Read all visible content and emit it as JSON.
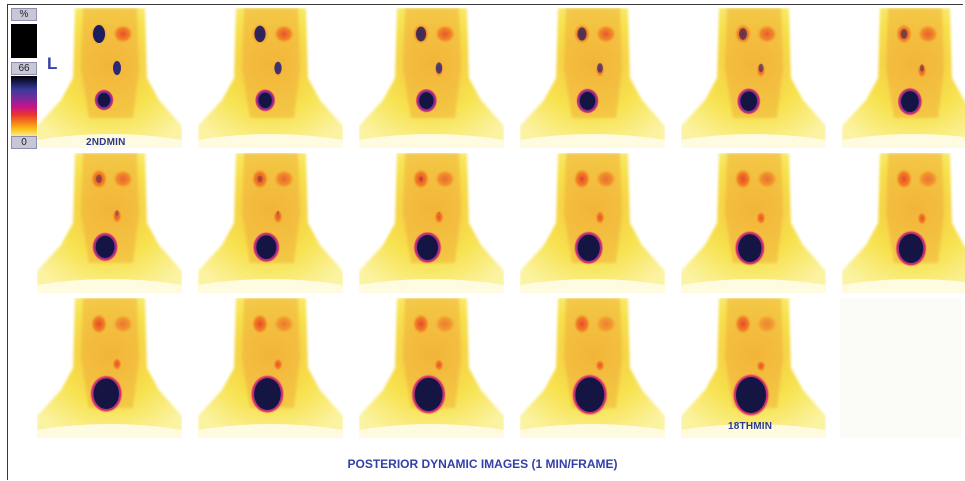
{
  "scale": {
    "top_label": "%",
    "max_label": "66",
    "min_label": "0"
  },
  "side_marker": "L",
  "frame_labels": {
    "first": "2NDMIN",
    "last": "18THMIN"
  },
  "caption": "POSTERIOR DYNAMIC IMAGES (1 MIN/FRAME)",
  "grid": {
    "rows": 3,
    "columns": 6,
    "frames_shown": 17
  },
  "colors": {
    "caption": "#3340a8",
    "background_tissue": "#f7e65a",
    "hot_spot": "#1b1d5e"
  }
}
